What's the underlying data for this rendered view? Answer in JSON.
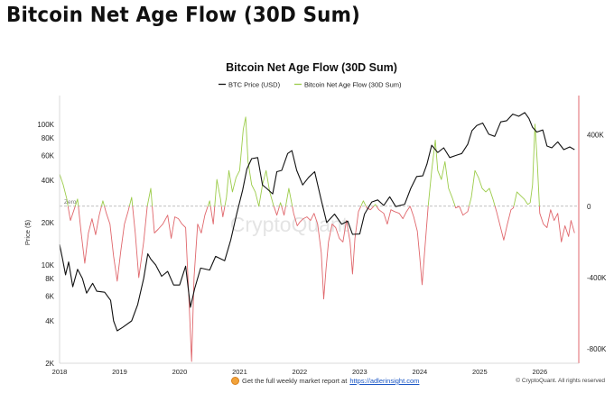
{
  "page": {
    "title": "Bitcoin Net Age Flow (30D Sum)"
  },
  "footer": {
    "text": "Get the full weekly market report at",
    "link": "https://adlerinsight.com",
    "copyright": "© CryptoQuant. All rights reserved"
  },
  "chart_data": {
    "type": "line",
    "title": "Bitcoin Net Age Flow (30D Sum)",
    "watermark": "CryptoQuant",
    "xlabel": "",
    "ylabel": "Price ($)",
    "y2label": "",
    "xlim": [
      2018.0,
      2026.65
    ],
    "x_ticks": [
      "2018",
      "2019",
      "2020",
      "2021",
      "2022",
      "2023",
      "2024",
      "2025",
      "2026"
    ],
    "y_scale": "log",
    "ylim": [
      2000,
      160000
    ],
    "y_ticks": [
      {
        "value": 2000,
        "label": "2K"
      },
      {
        "value": 4000,
        "label": "4K"
      },
      {
        "value": 6000,
        "label": "6K"
      },
      {
        "value": 8000,
        "label": "8K"
      },
      {
        "value": 10000,
        "label": "10K"
      },
      {
        "value": 20000,
        "label": "20K"
      },
      {
        "value": 40000,
        "label": "40K"
      },
      {
        "value": 60000,
        "label": "60K"
      },
      {
        "value": 80000,
        "label": "80K"
      },
      {
        "value": 100000,
        "label": "100K"
      }
    ],
    "y2lim": [
      -880000,
      620000
    ],
    "y2_ticks": [
      {
        "value": 400000,
        "label": "400K"
      },
      {
        "value": 0,
        "label": "0"
      },
      {
        "value": -400000,
        "label": "-400K"
      },
      {
        "value": -800000,
        "label": "-800K"
      }
    ],
    "zero_line_label": "Zero",
    "legend_position": "top-center",
    "colors": {
      "price": "#111111",
      "flow_positive": "#9ccc4a",
      "flow_negative": "#e0676c",
      "right_axis": "#e0676c",
      "zero_line": "#aaaaaa"
    },
    "series": [
      {
        "name": "BTC Price (USD)",
        "axis": "left",
        "color": "#111111",
        "points": [
          [
            2018.0,
            14000
          ],
          [
            2018.05,
            11000
          ],
          [
            2018.1,
            8500
          ],
          [
            2018.15,
            10500
          ],
          [
            2018.22,
            7000
          ],
          [
            2018.3,
            9300
          ],
          [
            2018.38,
            8000
          ],
          [
            2018.45,
            6300
          ],
          [
            2018.55,
            7400
          ],
          [
            2018.62,
            6500
          ],
          [
            2018.75,
            6400
          ],
          [
            2018.85,
            5600
          ],
          [
            2018.9,
            4000
          ],
          [
            2018.96,
            3400
          ],
          [
            2019.05,
            3600
          ],
          [
            2019.2,
            4000
          ],
          [
            2019.3,
            5200
          ],
          [
            2019.4,
            8000
          ],
          [
            2019.47,
            12000
          ],
          [
            2019.52,
            11000
          ],
          [
            2019.6,
            10000
          ],
          [
            2019.7,
            8300
          ],
          [
            2019.8,
            9000
          ],
          [
            2019.9,
            7200
          ],
          [
            2020.0,
            7200
          ],
          [
            2020.1,
            9800
          ],
          [
            2020.18,
            5000
          ],
          [
            2020.25,
            6800
          ],
          [
            2020.35,
            9500
          ],
          [
            2020.5,
            9200
          ],
          [
            2020.6,
            11500
          ],
          [
            2020.75,
            10700
          ],
          [
            2020.85,
            15000
          ],
          [
            2020.95,
            23000
          ],
          [
            2021.05,
            34000
          ],
          [
            2021.12,
            48000
          ],
          [
            2021.2,
            57000
          ],
          [
            2021.3,
            58000
          ],
          [
            2021.38,
            37000
          ],
          [
            2021.45,
            35000
          ],
          [
            2021.55,
            32000
          ],
          [
            2021.62,
            46000
          ],
          [
            2021.7,
            47000
          ],
          [
            2021.8,
            62000
          ],
          [
            2021.87,
            65000
          ],
          [
            2021.95,
            47000
          ],
          [
            2022.05,
            37000
          ],
          [
            2022.15,
            42000
          ],
          [
            2022.25,
            46000
          ],
          [
            2022.35,
            30000
          ],
          [
            2022.45,
            20000
          ],
          [
            2022.58,
            23000
          ],
          [
            2022.7,
            19500
          ],
          [
            2022.8,
            20500
          ],
          [
            2022.88,
            16500
          ],
          [
            2023.0,
            16600
          ],
          [
            2023.08,
            23000
          ],
          [
            2023.2,
            28000
          ],
          [
            2023.3,
            29000
          ],
          [
            2023.4,
            26500
          ],
          [
            2023.5,
            30500
          ],
          [
            2023.6,
            26000
          ],
          [
            2023.75,
            27000
          ],
          [
            2023.85,
            35000
          ],
          [
            2023.95,
            42500
          ],
          [
            2024.05,
            43000
          ],
          [
            2024.12,
            52000
          ],
          [
            2024.2,
            71000
          ],
          [
            2024.3,
            63000
          ],
          [
            2024.4,
            68000
          ],
          [
            2024.5,
            58000
          ],
          [
            2024.6,
            60000
          ],
          [
            2024.7,
            62000
          ],
          [
            2024.8,
            72000
          ],
          [
            2024.87,
            90000
          ],
          [
            2024.95,
            98000
          ],
          [
            2025.05,
            102000
          ],
          [
            2025.15,
            85000
          ],
          [
            2025.25,
            82000
          ],
          [
            2025.35,
            104000
          ],
          [
            2025.45,
            106000
          ],
          [
            2025.55,
            118000
          ],
          [
            2025.65,
            114000
          ],
          [
            2025.75,
            121000
          ],
          [
            2025.82,
            110000
          ],
          [
            2025.88,
            95000
          ],
          [
            2025.95,
            88000
          ],
          [
            2026.05,
            91000
          ],
          [
            2026.12,
            70000
          ],
          [
            2026.2,
            68000
          ],
          [
            2026.3,
            75000
          ],
          [
            2026.4,
            66000
          ],
          [
            2026.5,
            69000
          ],
          [
            2026.58,
            66000
          ]
        ]
      },
      {
        "name": "Bitcoin Net Age Flow (30D Sum)",
        "axis": "right",
        "color": "#9ccc4a",
        "negative_color": "#e0676c",
        "points": [
          [
            2018.0,
            180000
          ],
          [
            2018.06,
            120000
          ],
          [
            2018.12,
            40000
          ],
          [
            2018.18,
            -80000
          ],
          [
            2018.24,
            -20000
          ],
          [
            2018.3,
            40000
          ],
          [
            2018.36,
            -150000
          ],
          [
            2018.42,
            -320000
          ],
          [
            2018.48,
            -150000
          ],
          [
            2018.54,
            -70000
          ],
          [
            2018.6,
            -160000
          ],
          [
            2018.66,
            -50000
          ],
          [
            2018.72,
            30000
          ],
          [
            2018.78,
            -40000
          ],
          [
            2018.84,
            -100000
          ],
          [
            2018.9,
            -280000
          ],
          [
            2018.96,
            -420000
          ],
          [
            2019.02,
            -250000
          ],
          [
            2019.08,
            -100000
          ],
          [
            2019.14,
            -30000
          ],
          [
            2019.2,
            50000
          ],
          [
            2019.26,
            -150000
          ],
          [
            2019.32,
            -400000
          ],
          [
            2019.4,
            -200000
          ],
          [
            2019.46,
            0
          ],
          [
            2019.52,
            100000
          ],
          [
            2019.58,
            -150000
          ],
          [
            2019.64,
            -130000
          ],
          [
            2019.72,
            -100000
          ],
          [
            2019.8,
            -50000
          ],
          [
            2019.86,
            -180000
          ],
          [
            2019.92,
            -60000
          ],
          [
            2019.98,
            -70000
          ],
          [
            2020.04,
            -100000
          ],
          [
            2020.1,
            -120000
          ],
          [
            2020.16,
            -560000
          ],
          [
            2020.2,
            -870000
          ],
          [
            2020.24,
            -400000
          ],
          [
            2020.3,
            -100000
          ],
          [
            2020.36,
            -150000
          ],
          [
            2020.42,
            -50000
          ],
          [
            2020.5,
            30000
          ],
          [
            2020.56,
            -100000
          ],
          [
            2020.62,
            150000
          ],
          [
            2020.68,
            40000
          ],
          [
            2020.72,
            -60000
          ],
          [
            2020.78,
            50000
          ],
          [
            2020.82,
            200000
          ],
          [
            2020.88,
            80000
          ],
          [
            2020.94,
            160000
          ],
          [
            2021.0,
            200000
          ],
          [
            2021.06,
            430000
          ],
          [
            2021.1,
            500000
          ],
          [
            2021.14,
            250000
          ],
          [
            2021.2,
            120000
          ],
          [
            2021.26,
            80000
          ],
          [
            2021.32,
            0
          ],
          [
            2021.38,
            120000
          ],
          [
            2021.44,
            200000
          ],
          [
            2021.5,
            80000
          ],
          [
            2021.56,
            10000
          ],
          [
            2021.62,
            -50000
          ],
          [
            2021.68,
            20000
          ],
          [
            2021.74,
            -50000
          ],
          [
            2021.82,
            100000
          ],
          [
            2021.9,
            -40000
          ],
          [
            2021.96,
            -110000
          ],
          [
            2022.0,
            -90000
          ],
          [
            2022.06,
            -70000
          ],
          [
            2022.12,
            -60000
          ],
          [
            2022.18,
            -80000
          ],
          [
            2022.24,
            -40000
          ],
          [
            2022.3,
            -100000
          ],
          [
            2022.36,
            -260000
          ],
          [
            2022.4,
            -520000
          ],
          [
            2022.44,
            -350000
          ],
          [
            2022.48,
            -200000
          ],
          [
            2022.54,
            -100000
          ],
          [
            2022.6,
            -120000
          ],
          [
            2022.66,
            -180000
          ],
          [
            2022.72,
            -200000
          ],
          [
            2022.78,
            -80000
          ],
          [
            2022.84,
            -200000
          ],
          [
            2022.88,
            -380000
          ],
          [
            2022.92,
            -180000
          ],
          [
            2022.98,
            -30000
          ],
          [
            2023.06,
            30000
          ],
          [
            2023.12,
            -10000
          ],
          [
            2023.18,
            -20000
          ],
          [
            2023.26,
            10000
          ],
          [
            2023.32,
            -20000
          ],
          [
            2023.4,
            -40000
          ],
          [
            2023.46,
            -100000
          ],
          [
            2023.52,
            -20000
          ],
          [
            2023.58,
            -30000
          ],
          [
            2023.66,
            -40000
          ],
          [
            2023.72,
            -70000
          ],
          [
            2023.78,
            -30000
          ],
          [
            2023.84,
            0
          ],
          [
            2023.9,
            -60000
          ],
          [
            2023.96,
            -140000
          ],
          [
            2024.0,
            -280000
          ],
          [
            2024.04,
            -440000
          ],
          [
            2024.08,
            -260000
          ],
          [
            2024.14,
            0
          ],
          [
            2024.2,
            200000
          ],
          [
            2024.26,
            370000
          ],
          [
            2024.3,
            200000
          ],
          [
            2024.36,
            150000
          ],
          [
            2024.42,
            250000
          ],
          [
            2024.48,
            100000
          ],
          [
            2024.54,
            50000
          ],
          [
            2024.6,
            -10000
          ],
          [
            2024.66,
            0
          ],
          [
            2024.72,
            -50000
          ],
          [
            2024.8,
            -30000
          ],
          [
            2024.86,
            50000
          ],
          [
            2024.92,
            200000
          ],
          [
            2024.98,
            160000
          ],
          [
            2025.04,
            100000
          ],
          [
            2025.1,
            80000
          ],
          [
            2025.16,
            100000
          ],
          [
            2025.22,
            40000
          ],
          [
            2025.28,
            -30000
          ],
          [
            2025.34,
            -110000
          ],
          [
            2025.4,
            -190000
          ],
          [
            2025.46,
            -100000
          ],
          [
            2025.52,
            -20000
          ],
          [
            2025.56,
            -10000
          ],
          [
            2025.62,
            80000
          ],
          [
            2025.68,
            60000
          ],
          [
            2025.74,
            40000
          ],
          [
            2025.8,
            10000
          ],
          [
            2025.84,
            20000
          ],
          [
            2025.88,
            120000
          ],
          [
            2025.92,
            460000
          ],
          [
            2025.96,
            240000
          ],
          [
            2026.0,
            -40000
          ],
          [
            2026.06,
            -100000
          ],
          [
            2026.12,
            -120000
          ],
          [
            2026.18,
            -20000
          ],
          [
            2026.24,
            -80000
          ],
          [
            2026.3,
            -40000
          ],
          [
            2026.36,
            -200000
          ],
          [
            2026.42,
            -110000
          ],
          [
            2026.48,
            -170000
          ],
          [
            2026.52,
            -80000
          ],
          [
            2026.58,
            -150000
          ]
        ]
      }
    ]
  }
}
